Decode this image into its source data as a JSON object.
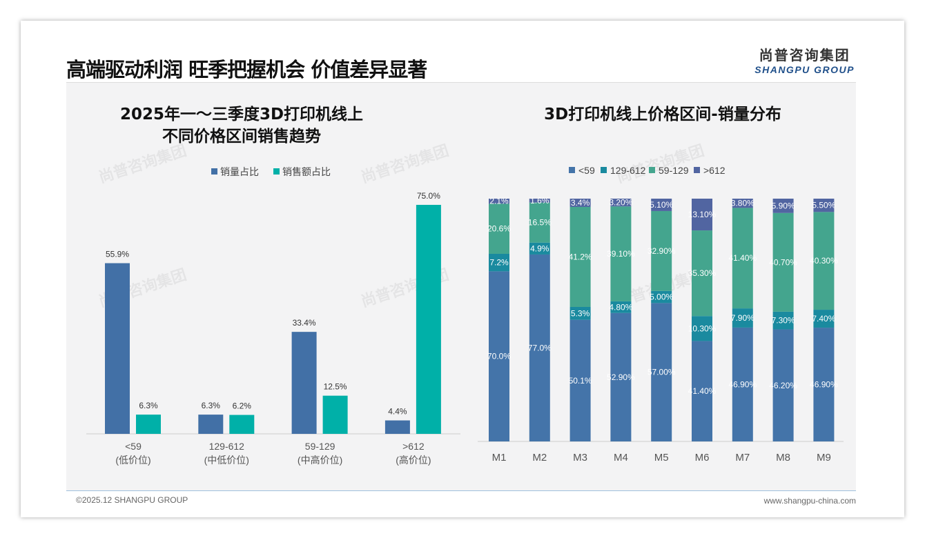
{
  "header": {
    "title": "高端驱动利润 旺季把握机会 价值差异显著",
    "logo_cn": "尚普咨询集团",
    "logo_en": "SHANGPU GROUP"
  },
  "footer": {
    "copyright": "©2025.12 SHANGPU GROUP",
    "website": "www.shangpu-china.com"
  },
  "chart_data": [
    {
      "type": "bar",
      "title": "2025年一～三季度3D打印机线上\n不同价格区间销售趋势",
      "title_lines": [
        "2025年一～三季度3D打印机线上",
        "不同价格区间销售趋势"
      ],
      "categories": [
        "<59",
        "129-612",
        "59-129",
        ">612"
      ],
      "category_sub": [
        "(低价位)",
        "(中低价位)",
        "(中高价位)",
        "(高价位)"
      ],
      "series": [
        {
          "name": "销量占比",
          "color": "#4270a6",
          "values": [
            55.9,
            6.3,
            33.4,
            4.4
          ],
          "labels": [
            "55.9%",
            "6.3%",
            "33.4%",
            "4.4%"
          ]
        },
        {
          "name": "销售额占比",
          "color": "#00b0a8",
          "values": [
            6.3,
            6.2,
            12.5,
            75.0
          ],
          "labels": [
            "6.3%",
            "6.2%",
            "12.5%",
            "75.0%"
          ]
        }
      ],
      "ylim": [
        0,
        80
      ],
      "legend": "top"
    },
    {
      "type": "bar",
      "stacked": true,
      "title": "3D打印机线上价格区间-销量分布",
      "categories": [
        "M1",
        "M2",
        "M3",
        "M4",
        "M5",
        "M6",
        "M7",
        "M8",
        "M9"
      ],
      "series": [
        {
          "name": "<59",
          "color": "#4474a9",
          "values": [
            70.0,
            77.0,
            50.1,
            52.9,
            57.0,
            41.4,
            46.9,
            46.2,
            46.9
          ],
          "labels": [
            "70.0%",
            "77.0%",
            "50.1%",
            "52.90%",
            "57.00%",
            "41.40%",
            "46.90%",
            "46.20%",
            "46.90%"
          ]
        },
        {
          "name": "129-612",
          "color": "#1a8a9f",
          "values": [
            7.2,
            4.9,
            5.3,
            4.8,
            5.0,
            10.3,
            7.9,
            7.3,
            7.4
          ],
          "labels": [
            "7.2%",
            "4.9%",
            "5.3%",
            "4.80%",
            "5.00%",
            "10.30%",
            "7.90%",
            "7.30%",
            "7.40%"
          ]
        },
        {
          "name": "59-129",
          "color": "#44a58e",
          "values": [
            20.6,
            16.5,
            41.2,
            39.1,
            32.9,
            35.3,
            41.4,
            40.7,
            40.3
          ],
          "labels": [
            "20.6%",
            "16.5%",
            "41.2%",
            "39.10%",
            "32.90%",
            "35.30%",
            "41.40%",
            "40.70%",
            "40.30%"
          ]
        },
        {
          "name": ">612",
          "color": "#5165a1",
          "values": [
            2.1,
            1.6,
            3.4,
            3.2,
            5.1,
            13.1,
            3.8,
            5.9,
            5.5
          ],
          "labels": [
            "2.1%",
            "1.6%",
            "3.4%",
            "3.20%",
            "5.10%",
            "13.10%",
            "3.80%",
            "5.90%",
            "5.50%"
          ]
        }
      ],
      "ylim": [
        0,
        100
      ],
      "legend": "top"
    }
  ]
}
